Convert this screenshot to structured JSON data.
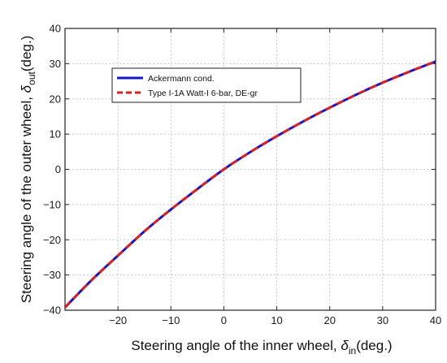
{
  "chart_data": {
    "type": "line",
    "title": "",
    "xlabel": {
      "prefix": "Steering angle of the inner wheel, ",
      "symbol": "δ",
      "subscript": "in",
      "suffix": "(deg.)"
    },
    "ylabel": {
      "prefix": "Steering angle of the outer wheel, ",
      "symbol": "δ",
      "subscript": "out",
      "suffix": "(deg.)"
    },
    "xlim": [
      -30,
      40
    ],
    "ylim": [
      -40,
      40
    ],
    "xticks": [
      -20,
      -10,
      0,
      10,
      20,
      30,
      40
    ],
    "yticks": [
      -40,
      -30,
      -20,
      -10,
      0,
      10,
      20,
      30,
      40
    ],
    "xtick_labels": [
      "−20",
      "−10",
      "0",
      "10",
      "20",
      "30",
      "40"
    ],
    "ytick_labels": [
      "−40",
      "−30",
      "−20",
      "−10",
      "0",
      "10",
      "20",
      "30",
      "40"
    ],
    "grid": true,
    "legend_position": "upper-left",
    "series": [
      {
        "name": "Ackermann cond.",
        "color": "#1515d6",
        "style": "solid",
        "x": [
          -30,
          -25,
          -20,
          -15,
          -10,
          -5,
          0,
          5,
          10,
          15,
          20,
          25,
          30,
          35,
          40
        ],
        "y": [
          -39.2,
          -31.5,
          -24.5,
          -17.6,
          -11.4,
          -5.6,
          0,
          4.9,
          9.4,
          13.6,
          17.5,
          21.2,
          24.6,
          27.7,
          30.6
        ]
      },
      {
        "name": "Type I-1A Watt-I 6-bar, DE-gr",
        "color": "#e01f1f",
        "style": "dashed",
        "x": [
          -30,
          -25,
          -20,
          -15,
          -10,
          -5,
          0,
          5,
          10,
          15,
          20,
          25,
          30,
          35,
          40
        ],
        "y": [
          -39.2,
          -31.5,
          -24.5,
          -17.6,
          -11.4,
          -5.6,
          0,
          4.9,
          9.4,
          13.6,
          17.5,
          21.2,
          24.6,
          27.7,
          30.6
        ]
      }
    ]
  }
}
